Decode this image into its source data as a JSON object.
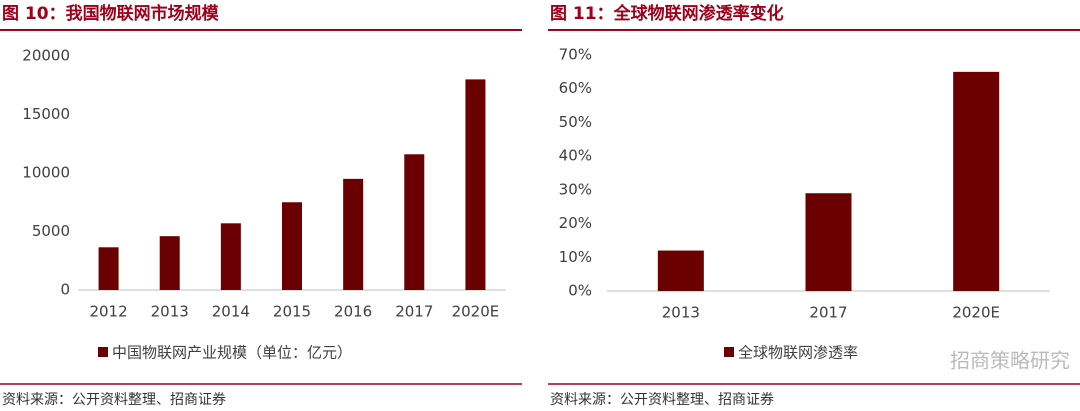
{
  "chart_data": [
    {
      "type": "bar",
      "title": "图 10：我国物联网市场规模",
      "categories": [
        "2012",
        "2013",
        "2014",
        "2015",
        "2016",
        "2017",
        "2020E"
      ],
      "series": [
        {
          "name": "中国物联网产业规模（单位：亿元）",
          "color": "#6b0000",
          "values": [
            3650,
            4600,
            5700,
            7500,
            9500,
            11600,
            18000
          ]
        }
      ],
      "ylim": [
        0,
        20000
      ],
      "yticks": [
        0,
        5000,
        10000,
        15000,
        20000
      ],
      "grid": false,
      "source": "资料来源：公开资料整理、招商证券"
    },
    {
      "type": "bar",
      "title": "图 11：全球物联网渗透率变化",
      "categories": [
        "2013",
        "2017",
        "2020E"
      ],
      "series": [
        {
          "name": "全球物联网渗透率",
          "color": "#6b0000",
          "values": [
            12,
            29,
            65
          ]
        }
      ],
      "ylim": [
        0,
        70
      ],
      "yticks": [
        {
          "value": 0,
          "label": "0%"
        },
        {
          "value": 10,
          "label": "10%"
        },
        {
          "value": 20,
          "label": "20%"
        },
        {
          "value": 30,
          "label": "30%"
        },
        {
          "value": 40,
          "label": "40%"
        },
        {
          "value": 50,
          "label": "50%"
        },
        {
          "value": 60,
          "label": "60%"
        },
        {
          "value": 70,
          "label": "70%"
        }
      ],
      "grid": false,
      "source": "资料来源：公开资料整理、招商证券",
      "watermark": "招商策略研究"
    }
  ]
}
